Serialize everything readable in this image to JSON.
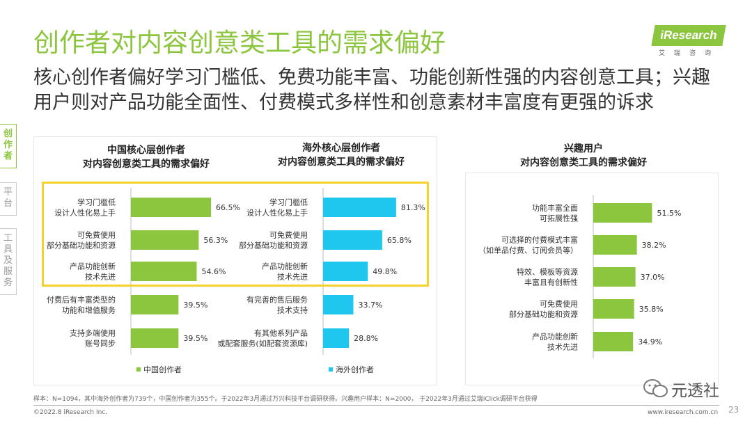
{
  "header": {
    "title": "创作者对内容创意类工具的需求偏好",
    "subtitle": "核心创作者偏好学习门槛低、免费功能丰富、功能创新性强的内容创意工具；兴趣用户则对产品功能全面性、付费模式多样性和创意素材丰富度有更强的诉求"
  },
  "logo": {
    "text": "iResearch",
    "cn": "艾瑞咨询"
  },
  "sidebar": {
    "items": [
      {
        "label": "创作者",
        "chars": [
          "创",
          "作",
          "者"
        ]
      },
      {
        "label": "平台",
        "chars": [
          "平",
          "台"
        ]
      },
      {
        "label": "工具及服务",
        "chars": [
          "工",
          "具",
          "及",
          "服",
          "务"
        ]
      }
    ]
  },
  "colors": {
    "green": "#8cc63f",
    "blue": "#1fc6ee",
    "highlight": "#f5d22b"
  },
  "chart_data": [
    {
      "type": "bar",
      "orientation": "horizontal",
      "title_line1": "中国核心层创作者",
      "title_line2": "对内容创意类工具的需求偏好",
      "categories": [
        [
          "学习门槛低",
          "设计人性化易上手"
        ],
        [
          "可免费使用",
          "部分基础功能和资源"
        ],
        [
          "产品功能创新",
          "技术先进"
        ],
        [
          "付费后有丰富类型的",
          "功能和增值服务"
        ],
        [
          "支持多端使用",
          "账号同步"
        ]
      ],
      "values": [
        66.5,
        56.3,
        54.6,
        39.5,
        39.5
      ],
      "labels": [
        "66.5%",
        "56.3%",
        "54.6%",
        "39.5%",
        "39.5%"
      ],
      "legend": "中国创作者",
      "color": "#8cc63f",
      "xlim": [
        0,
        100
      ]
    },
    {
      "type": "bar",
      "orientation": "horizontal",
      "title_line1": "海外核心层创作者",
      "title_line2": "对内容创意类工具的需求偏好",
      "categories": [
        [
          "学习门槛低",
          "设计人性化易上手"
        ],
        [
          "可免费使用",
          "部分基础功能和资源"
        ],
        [
          "产品功能创新",
          "技术先进"
        ],
        [
          "有完善的售后服务",
          "技术支持"
        ],
        [
          "有其他系列产品",
          "或配套服务(如配套资源库)"
        ]
      ],
      "values": [
        81.3,
        65.8,
        49.8,
        33.7,
        28.8
      ],
      "labels": [
        "81.3%",
        "65.8%",
        "49.8%",
        "33.7%",
        "28.8%"
      ],
      "legend": "海外创作者",
      "color": "#1fc6ee",
      "xlim": [
        0,
        100
      ]
    },
    {
      "type": "bar",
      "orientation": "horizontal",
      "title_line1": "兴趣用户",
      "title_line2": "对内容创意类工具的需求偏好",
      "categories": [
        [
          "功能丰富全面",
          "可拓展性强"
        ],
        [
          "可选择的付费模式丰富",
          "（如单品付费、订阅会员等）"
        ],
        [
          "特效、模板等资源",
          "丰富且有创新性"
        ],
        [
          "可免费使用",
          "部分基础功能和资源"
        ],
        [
          "产品功能创新",
          "技术先进"
        ]
      ],
      "values": [
        51.5,
        38.2,
        37.0,
        35.8,
        34.9
      ],
      "labels": [
        "51.5%",
        "38.2%",
        "37.0%",
        "35.8%",
        "34.9%"
      ],
      "color": "#8cc63f",
      "xlim": [
        0,
        100
      ]
    }
  ],
  "footer": {
    "note": "样本：N=1094，其中海外创作者为739个，中国创作者为355个。于2022年3月通过万兴科技平台调研获得。兴趣用户样本：N=2000， 于2022年3月通过艾瑞iClick调研平台获得",
    "copyright": "©2022.8 iResearch Inc.",
    "website": "www.iresearch.com.cn",
    "page": "23",
    "watermark": "元透社"
  }
}
